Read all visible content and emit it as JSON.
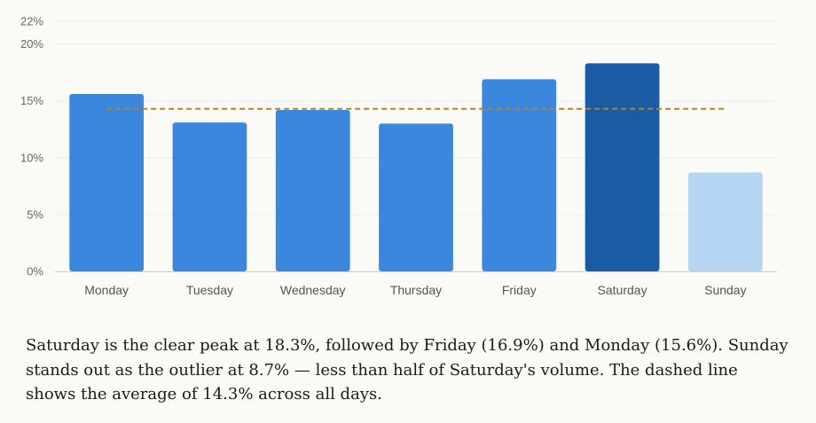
{
  "chart_data": {
    "type": "bar",
    "categories": [
      "Monday",
      "Tuesday",
      "Wednesday",
      "Thursday",
      "Friday",
      "Saturday",
      "Sunday"
    ],
    "values": [
      15.6,
      13.1,
      14.2,
      13.0,
      16.9,
      18.3,
      8.7
    ],
    "average": 14.3,
    "ylim": [
      0,
      22
    ],
    "yticks": [
      0,
      5,
      10,
      15,
      20,
      22
    ],
    "ytick_format_suffix": "%",
    "grid": true,
    "colors": {
      "default": "#3a87dd",
      "peak": "#1a5ca4",
      "outlier": "#b6d4f4",
      "average_line": "#b5822e",
      "grid": "#ececec",
      "axis": "#cccccc"
    },
    "highlight": {
      "Saturday": "peak",
      "Sunday": "outlier"
    }
  },
  "caption": "Saturday is the clear peak at 18.3%, followed by Friday (16.9%) and Monday (15.6%). Sunday stands out as the outlier at 8.7% — less than half of Saturday's volume. The dashed line shows the average of 14.3% across all days."
}
